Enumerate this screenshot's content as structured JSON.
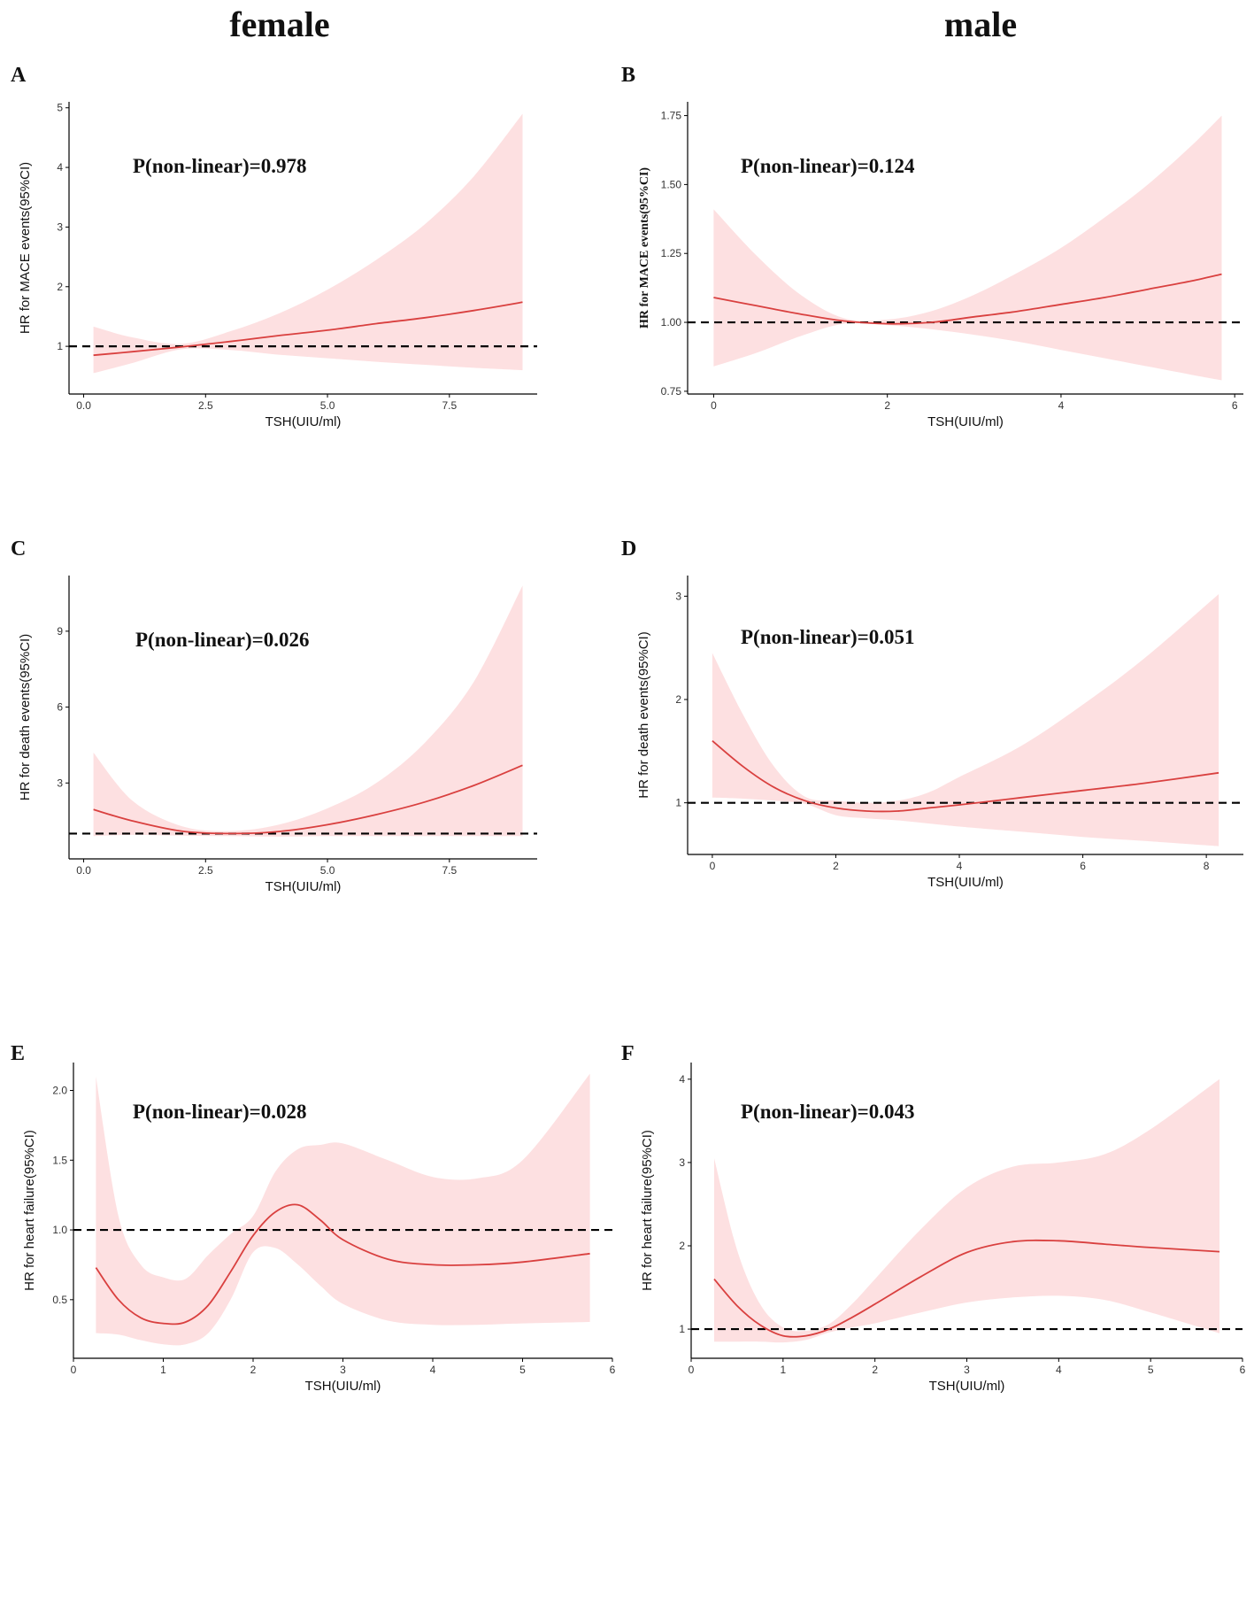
{
  "column_titles": {
    "left": "female",
    "right": "male"
  },
  "colors": {
    "band": "#fde0e1",
    "curve": "#d9403f",
    "reference": "#000000",
    "axis": "#000000"
  },
  "chart_data": [
    {
      "id": "A",
      "type": "line",
      "letter": "A",
      "title": "",
      "annotation": "P(non-linear)=0.978",
      "xlabel": "TSH(UIU/ml)",
      "ylabel": "HR for MACE events(95%CI)",
      "ylabel_serif": false,
      "xlim": [
        -0.3,
        9.3
      ],
      "ylim": [
        0.2,
        5.1
      ],
      "xticks": [
        0.0,
        2.5,
        5.0,
        7.5
      ],
      "xtick_labels": [
        "0.0",
        "2.5",
        "5.0",
        "7.5"
      ],
      "yticks": [
        1,
        2,
        3,
        4,
        5
      ],
      "ytick_labels": [
        "1",
        "2",
        "3",
        "4",
        "5"
      ],
      "reference_y": 1,
      "x": [
        0.2,
        1,
        2,
        3,
        4,
        5,
        6,
        7,
        8,
        9
      ],
      "series": [
        {
          "name": "HR",
          "values": [
            0.85,
            0.91,
            0.99,
            1.08,
            1.18,
            1.27,
            1.38,
            1.48,
            1.6,
            1.74
          ]
        },
        {
          "name": "Lower 95% CI",
          "values": [
            0.55,
            0.72,
            0.95,
            0.94,
            0.86,
            0.8,
            0.74,
            0.69,
            0.64,
            0.6
          ]
        },
        {
          "name": "Upper 95% CI",
          "values": [
            1.33,
            1.15,
            1.04,
            1.25,
            1.55,
            1.95,
            2.45,
            3.05,
            3.85,
            4.9
          ]
        }
      ]
    },
    {
      "id": "B",
      "type": "line",
      "letter": "B",
      "title": "",
      "annotation": "P(non-linear)=0.124",
      "xlabel": "TSH(UIU/ml)",
      "ylabel": "HR for MACE events(95%CI)",
      "ylabel_serif": true,
      "xlim": [
        -0.3,
        6.1
      ],
      "ylim": [
        0.74,
        1.8
      ],
      "xticks": [
        0,
        2,
        4,
        6
      ],
      "xtick_labels": [
        "0",
        "2",
        "4",
        "6"
      ],
      "yticks": [
        0.75,
        1.0,
        1.25,
        1.5,
        1.75
      ],
      "ytick_labels": [
        "0.75",
        "1.00",
        "1.25",
        "1.50",
        "1.75"
      ],
      "reference_y": 1,
      "x": [
        0,
        0.5,
        1,
        1.5,
        2,
        2.5,
        3,
        3.5,
        4,
        4.5,
        5,
        5.5,
        5.85
      ],
      "series": [
        {
          "name": "HR",
          "values": [
            1.09,
            1.06,
            1.03,
            1.005,
            0.995,
            1.0,
            1.02,
            1.04,
            1.065,
            1.09,
            1.12,
            1.15,
            1.175
          ]
        },
        {
          "name": "Lower 95% CI",
          "values": [
            0.84,
            0.89,
            0.95,
            0.995,
            0.99,
            0.975,
            0.955,
            0.93,
            0.9,
            0.87,
            0.84,
            0.81,
            0.79
          ]
        },
        {
          "name": "Upper 95% CI",
          "values": [
            1.41,
            1.24,
            1.1,
            1.015,
            1.01,
            1.04,
            1.1,
            1.18,
            1.27,
            1.38,
            1.5,
            1.64,
            1.75
          ]
        }
      ]
    },
    {
      "id": "C",
      "type": "line",
      "letter": "C",
      "title": "",
      "annotation": "P(non-linear)=0.026",
      "xlabel": "TSH(UIU/ml)",
      "ylabel": "HR for death events(95%CI)",
      "ylabel_serif": false,
      "xlim": [
        -0.3,
        9.3
      ],
      "ylim": [
        0.0,
        11.2
      ],
      "xticks": [
        0.0,
        2.5,
        5.0,
        7.5
      ],
      "xtick_labels": [
        "0.0",
        "2.5",
        "5.0",
        "7.5"
      ],
      "yticks": [
        3,
        6,
        9
      ],
      "ytick_labels": [
        "3",
        "6",
        "9"
      ],
      "reference_y": 1,
      "x": [
        0.2,
        1,
        2,
        3,
        4,
        5,
        6,
        7,
        8,
        9
      ],
      "series": [
        {
          "name": "HR",
          "values": [
            1.95,
            1.5,
            1.1,
            1.0,
            1.08,
            1.35,
            1.75,
            2.25,
            2.9,
            3.7
          ]
        },
        {
          "name": "Lower 95% CI",
          "values": [
            0.9,
            0.95,
            0.92,
            0.9,
            0.88,
            0.9,
            0.9,
            0.9,
            0.9,
            0.9
          ]
        },
        {
          "name": "Upper 95% CI",
          "values": [
            4.2,
            2.3,
            1.3,
            1.1,
            1.35,
            2.0,
            3.0,
            4.6,
            7.0,
            10.8
          ]
        }
      ]
    },
    {
      "id": "D",
      "type": "line",
      "letter": "D",
      "title": "",
      "annotation": "P(non-linear)=0.051",
      "xlabel": "TSH(UIU/ml)",
      "ylabel": "HR for death events(95%CI)",
      "ylabel_serif": false,
      "xlim": [
        -0.4,
        8.6
      ],
      "ylim": [
        0.5,
        3.2
      ],
      "xticks": [
        0,
        2,
        4,
        6,
        8
      ],
      "xtick_labels": [
        "0",
        "2",
        "4",
        "6",
        "8"
      ],
      "yticks": [
        1,
        2,
        3
      ],
      "ytick_labels": [
        "1",
        "2",
        "3"
      ],
      "reference_y": 1,
      "x": [
        0,
        0.5,
        1,
        1.5,
        2,
        2.5,
        3,
        3.5,
        4,
        5,
        6,
        7,
        8.2
      ],
      "series": [
        {
          "name": "HR",
          "values": [
            1.6,
            1.35,
            1.15,
            1.02,
            0.95,
            0.92,
            0.92,
            0.95,
            0.98,
            1.05,
            1.12,
            1.19,
            1.29
          ]
        },
        {
          "name": "Lower 95% CI",
          "values": [
            1.05,
            1.04,
            1.02,
            0.99,
            0.88,
            0.85,
            0.83,
            0.8,
            0.77,
            0.72,
            0.67,
            0.63,
            0.58
          ]
        },
        {
          "name": "Upper 95% CI",
          "values": [
            2.45,
            1.85,
            1.35,
            1.06,
            1.02,
            1.0,
            1.02,
            1.1,
            1.25,
            1.55,
            1.95,
            2.4,
            3.02
          ]
        }
      ]
    },
    {
      "id": "E",
      "type": "line",
      "letter": "E",
      "title": "",
      "annotation": "P(non-linear)=0.028",
      "xlabel": "TSH(UIU/ml)",
      "ylabel": "HR for heart failure(95%CI)",
      "ylabel_serif": false,
      "xlim": [
        0.0,
        6.0
      ],
      "ylim": [
        0.08,
        2.2
      ],
      "xticks": [
        0,
        1,
        2,
        3,
        4,
        5,
        6
      ],
      "xtick_labels": [
        "0",
        "1",
        "2",
        "3",
        "4",
        "5",
        "6"
      ],
      "yticks": [
        0.5,
        1.0,
        1.5,
        2.0
      ],
      "ytick_labels": [
        "0.5",
        "1.0",
        "1.5",
        "2.0"
      ],
      "reference_y": 1,
      "x": [
        0.25,
        0.5,
        0.75,
        1.0,
        1.25,
        1.5,
        1.75,
        2.0,
        2.25,
        2.5,
        2.75,
        3.0,
        3.5,
        4.0,
        4.5,
        5.0,
        5.75
      ],
      "series": [
        {
          "name": "HR",
          "values": [
            0.73,
            0.5,
            0.37,
            0.33,
            0.34,
            0.46,
            0.7,
            0.96,
            1.13,
            1.18,
            1.07,
            0.93,
            0.79,
            0.75,
            0.75,
            0.77,
            0.83
          ]
        },
        {
          "name": "Lower 95% CI",
          "values": [
            0.26,
            0.25,
            0.21,
            0.18,
            0.18,
            0.26,
            0.5,
            0.84,
            0.87,
            0.75,
            0.6,
            0.47,
            0.35,
            0.32,
            0.32,
            0.33,
            0.34
          ]
        },
        {
          "name": "Upper 95% CI",
          "values": [
            2.1,
            1.1,
            0.75,
            0.66,
            0.65,
            0.82,
            0.97,
            1.1,
            1.42,
            1.58,
            1.61,
            1.62,
            1.5,
            1.38,
            1.37,
            1.5,
            2.12
          ]
        }
      ]
    },
    {
      "id": "F",
      "type": "line",
      "letter": "F",
      "title": "",
      "annotation": "P(non-linear)=0.043",
      "xlabel": "TSH(UIU/ml)",
      "ylabel": "HR for heart failure(95%CI)",
      "ylabel_serif": false,
      "xlim": [
        0.0,
        6.0
      ],
      "ylim": [
        0.65,
        4.2
      ],
      "xticks": [
        0,
        1,
        2,
        3,
        4,
        5,
        6
      ],
      "xtick_labels": [
        "0",
        "1",
        "2",
        "3",
        "4",
        "5",
        "6"
      ],
      "yticks": [
        1,
        2,
        3,
        4
      ],
      "ytick_labels": [
        "1",
        "2",
        "3",
        "4"
      ],
      "reference_y": 1,
      "x": [
        0.25,
        0.5,
        0.75,
        1.0,
        1.25,
        1.5,
        1.75,
        2.0,
        2.5,
        3.0,
        3.5,
        4.0,
        4.5,
        5.0,
        5.75
      ],
      "series": [
        {
          "name": "HR",
          "values": [
            1.6,
            1.28,
            1.05,
            0.92,
            0.92,
            1.0,
            1.14,
            1.3,
            1.63,
            1.92,
            2.05,
            2.06,
            2.02,
            1.98,
            1.93
          ]
        },
        {
          "name": "Lower 95% CI",
          "values": [
            0.85,
            0.85,
            0.85,
            0.84,
            0.87,
            0.96,
            1.02,
            1.07,
            1.2,
            1.32,
            1.38,
            1.4,
            1.35,
            1.2,
            0.95
          ]
        },
        {
          "name": "Upper 95% CI",
          "values": [
            3.05,
            1.95,
            1.3,
            1.02,
            0.98,
            1.06,
            1.3,
            1.6,
            2.2,
            2.7,
            2.95,
            3.0,
            3.1,
            3.4,
            4.0
          ]
        }
      ]
    }
  ]
}
